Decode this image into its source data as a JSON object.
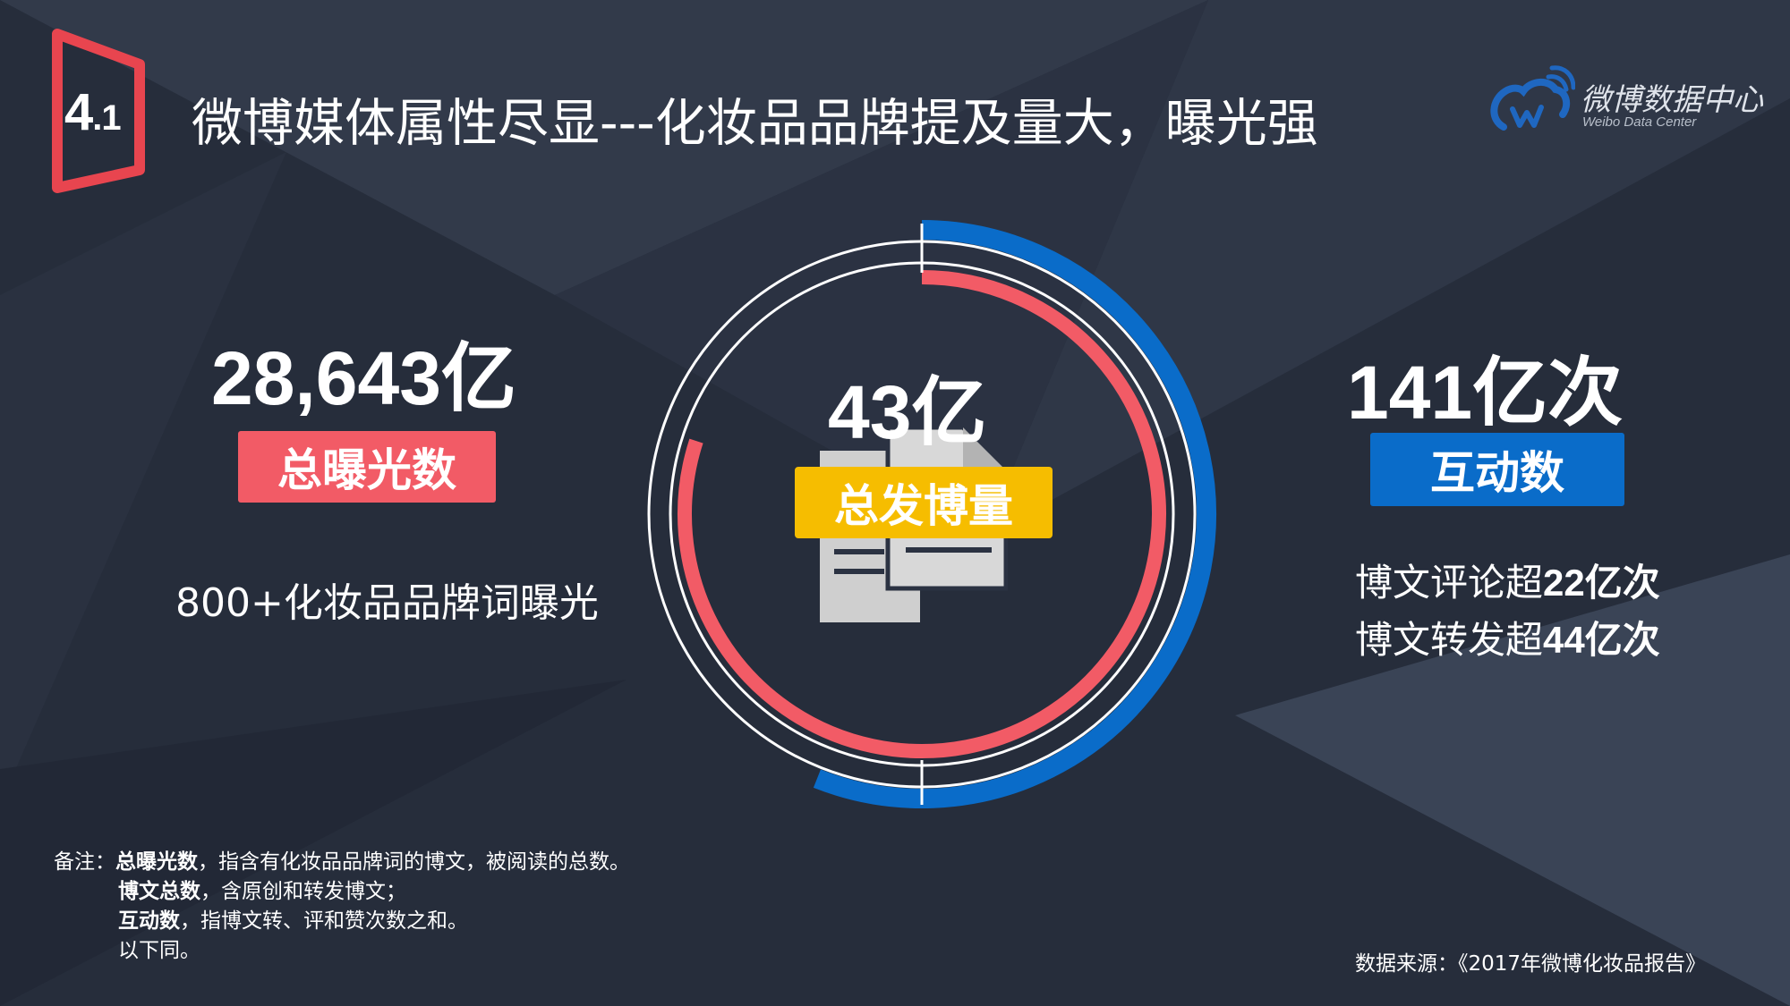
{
  "header": {
    "section_number": "4",
    "section_sub": ".1",
    "title": "微博媒体属性尽显---化妆品品牌提及量大，曝光强"
  },
  "logo": {
    "text": "微博数据中心",
    "subtext": "Weibo Data Center"
  },
  "left_stat": {
    "value": "28,643亿",
    "label": "总曝光数",
    "description": "800+化妆品品牌词曝光"
  },
  "center_stat": {
    "value": "43亿",
    "label": "总发博量"
  },
  "right_stat": {
    "value": "141亿次",
    "label": "互动数",
    "lines": [
      {
        "prefix": "博文评论超",
        "value": "22亿次"
      },
      {
        "prefix": "博文转发超",
        "value": "44亿次"
      }
    ]
  },
  "notes": {
    "prefix": "备注：",
    "items": [
      {
        "term": "总曝光数",
        "text": "，指含有化妆品品牌词的博文，被阅读的总数。"
      },
      {
        "term": "博文总数",
        "text": "，含原创和转发博文；"
      },
      {
        "term": "互动数",
        "text": "，指博文转、评和赞次数之和。"
      }
    ],
    "footer": "以下同。"
  },
  "source": "数据来源：《2017年微博化妆品报告》",
  "colors": {
    "background": "#262d3b",
    "red": "#f25b66",
    "blue": "#0a6cc9",
    "yellow": "#f6bd00",
    "section_mark": "#e8454f"
  },
  "rings": {
    "outer_blue_fraction": 0.56,
    "inner_red_fraction": 0.8
  }
}
